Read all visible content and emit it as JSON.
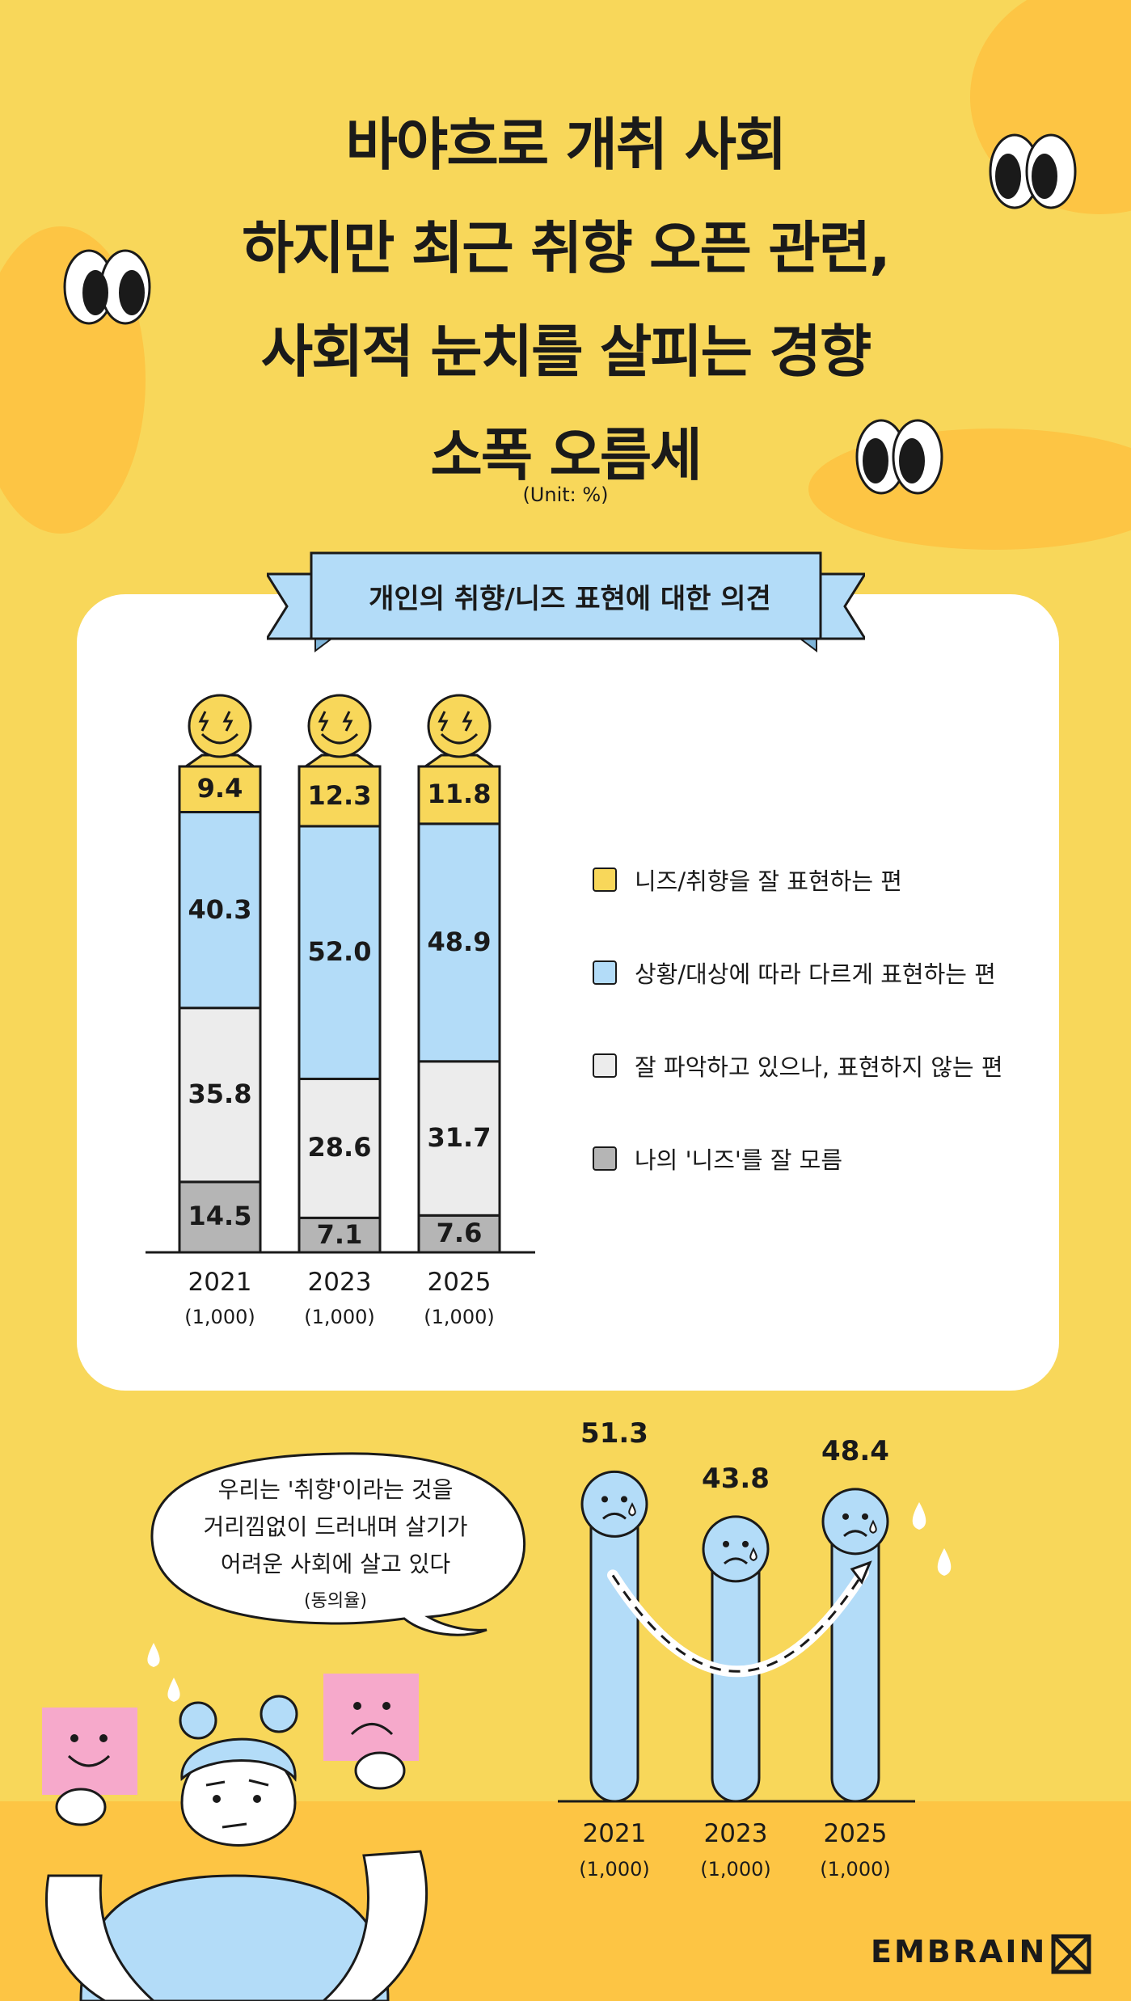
{
  "title": {
    "lines": [
      "바야흐로 개취 사회",
      "하지만 최근 취향 오픈 관련,",
      "사회적 눈치를 살피는 경향",
      "소폭 오름세"
    ]
  },
  "unit": "(Unit: %)",
  "chart_data": [
    {
      "type": "bar",
      "stacked": true,
      "title": "개인의 취향/니즈 표현에 대한 의견",
      "categories": [
        "2021",
        "2023",
        "2025"
      ],
      "sample_sizes": [
        "(1,000)",
        "(1,000)",
        "(1,000)"
      ],
      "series": [
        {
          "name": "나의 '니즈'를 잘 모름",
          "color": "#b5b5b5",
          "values": [
            14.5,
            7.1,
            7.6
          ]
        },
        {
          "name": "잘 파악하고 있으나, 표현하지 않는 편",
          "color": "#ececec",
          "values": [
            35.8,
            28.6,
            31.7
          ]
        },
        {
          "name": "상황/대상에 따라 다르게 표현하는 편",
          "color": "#b3dcf8",
          "values": [
            40.3,
            52.0,
            48.9
          ]
        },
        {
          "name": "니즈/취향을 잘 표현하는 편",
          "color": "#f8d75a",
          "values": [
            9.4,
            12.3,
            11.8
          ]
        }
      ],
      "legend_order": [
        "니즈/취향을 잘 표현하는 편",
        "상황/대상에 따라 다르게 표현하는 편",
        "잘 파악하고 있으나, 표현하지 않는 편",
        "나의 '니즈'를 잘 모름"
      ],
      "legend": "right",
      "ylim": [
        0,
        100
      ]
    },
    {
      "type": "bar",
      "title": "우리는 '취향'이라는 것을 거리낌없이 드러내며 살기가 어려운 사회에 살고 있다",
      "subtitle": "(동의율)",
      "categories": [
        "2021",
        "2023",
        "2025"
      ],
      "sample_sizes": [
        "(1,000)",
        "(1,000)",
        "(1,000)"
      ],
      "values": [
        51.3,
        43.8,
        48.4
      ],
      "color": "#b3dcf8"
    }
  ],
  "bubble": {
    "lines": [
      "우리는 '취향'이라는 것을",
      "거리낌없이 드러내며 살기가",
      "어려운 사회에 살고 있다"
    ],
    "note": "(동의율)"
  },
  "logo": "EMBRAIN",
  "colors": {
    "background": "#f8d75a",
    "accent_orange": "#fdc544",
    "blue": "#b3dcf8",
    "pink": "#f6a9cb"
  }
}
